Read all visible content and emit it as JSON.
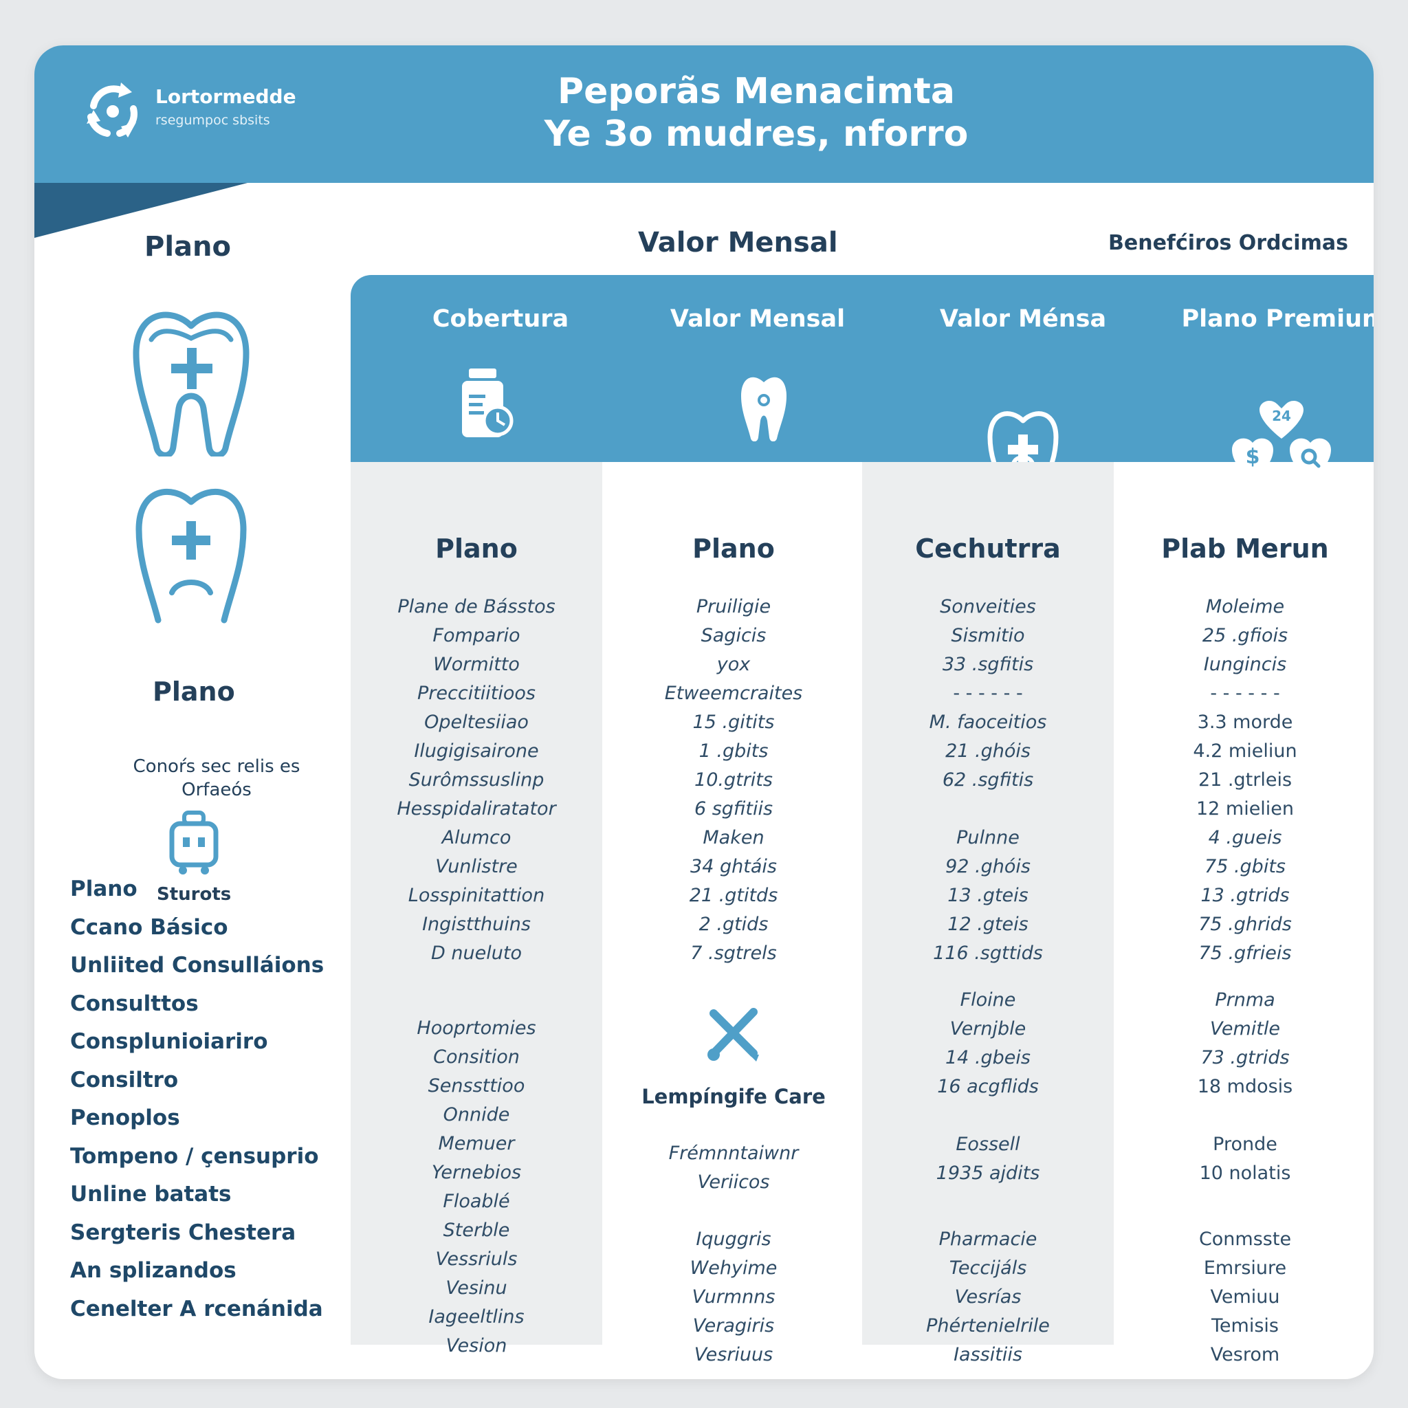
{
  "header": {
    "logo_name": "Lortormedde",
    "logo_tagline": "rsegumpoc sbsits",
    "title_line1": "Peporãs Menacimta",
    "title_line2": "Ye 3o mudres, nforro"
  },
  "top_labels": {
    "plano": "Plano",
    "valor_mensal": "Valor Mensal",
    "beneficios": "Benefćiros Ordcimas"
  },
  "sidebar": {
    "plano_label": "Plano",
    "desc_line1": "Conoŕs sec relis es",
    "desc_line2": "Orfaeós",
    "sturots_label": "Sturots",
    "items": [
      "Plano",
      "Ccano Básico",
      "Unliited Consulláions",
      "Consulttos",
      "Consplunioiariro",
      "Consiltro",
      "Penoplos",
      "Tompeno / çensuprio",
      "Unline batats",
      "Sergteris Chestera",
      "An splizandos",
      "Cenelter A rcenánida"
    ]
  },
  "columns": [
    {
      "header": "Cobertura",
      "icon": "medicine-bottle-icon",
      "title": "Plano",
      "list_a": [
        "Plane de Básstos",
        "Fompario",
        "Wormitto",
        "Preccitiitioos",
        "Opeltesiiao",
        "Ilugigisairone",
        "Surômssuslinp",
        "Hesspidaliratator",
        "Alumco",
        "Vunlistre",
        "Losspinitattion",
        "Ingistthuins",
        "D nueluto"
      ],
      "list_b": [
        "Hooprtomies",
        "Consition",
        "Senssttioo",
        "Onnide",
        "Memuer",
        "Yernebios",
        "Floablé",
        "Sterble",
        "Vessriuls",
        "Vesinu",
        "Iageeltlins",
        "Vesion"
      ]
    },
    {
      "header": "Valor Mensal",
      "icon": "tooth-icon",
      "title": "Plano",
      "list_a": [
        "Pruiligie",
        "Sagicis",
        "yox",
        "Etweemcraites",
        "15 .gitits",
        "1 .gbits",
        "10.gtrits",
        "6 sgfitiis",
        "Maken",
        "34 ghtáis",
        "21 .gtitds",
        "2 .gtids",
        "7 .sgtrels"
      ],
      "care_title": "Lempíngife Care",
      "list_care": [
        "Frémnntaiwnr",
        "Veriicos"
      ],
      "list_b": [
        "Iquggris",
        "Wehyime",
        "Vurmnns",
        "Veragiris",
        "Vesriuus"
      ]
    },
    {
      "header": "Valor Ménsa",
      "icon": "tooth-plus-icon",
      "title": "Cechutrra",
      "list_a": [
        "Sonveities",
        "Sismitio",
        "33 .sgfitis",
        "- - - - - -",
        "M. faoceitios",
        "21 .ghóis",
        "62 .sgfitis",
        "",
        "Pulnne",
        "92 .ghóis",
        "13 .gteis",
        "12 .gteis",
        "116 .sgttids"
      ],
      "list_mid": [
        "Floine",
        "Vernjble",
        "14 .gbeis",
        "16 acgflids",
        "",
        "Eossell",
        "1935 ajdits"
      ],
      "list_b": [
        "Pharmacie",
        "Teccijáls",
        "Vesrías",
        "Phértenielrile",
        "Iassitiis"
      ]
    },
    {
      "header": "Plano Premium",
      "icon": "hearts-24-icon",
      "title": "Plab Merun",
      "list_a": [
        "Moleime",
        "25 .gfiois",
        "Iungincis",
        "- - - - - -",
        "3.3 morde",
        "4.2 mieliun",
        "21 .gtrleis",
        "12 mielien",
        "4 .gueis",
        "75 .gbits",
        "13 .gtrids",
        "75 .ghrids",
        "75 .gfrieis"
      ],
      "list_mid": [
        "Prnma",
        "Vemitle",
        "73 .gtrids",
        "18 mdosis",
        "",
        "Pronde",
        "10 nolatis"
      ],
      "list_b": [
        "Conmsste",
        "Emrsiure",
        "Vemiuu",
        "Temisis",
        "Vesrom"
      ]
    }
  ],
  "colors": {
    "accent": "#4f9fc8",
    "accent_dark": "#2b6287",
    "text_dark": "#24405a",
    "column_bg": "#eceeef",
    "page_bg": "#e7e9eb"
  }
}
